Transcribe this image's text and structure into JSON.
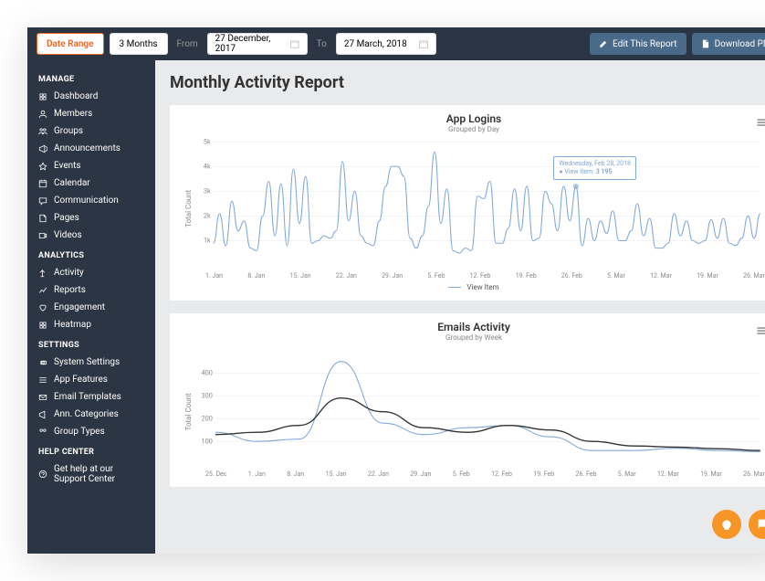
{
  "topbar": {
    "date_range_label": "Date Range",
    "period_label": "3 Months",
    "from_label": "From",
    "to_label": "To",
    "from_date": "27 December, 2017",
    "to_date": "27 March, 2018",
    "edit_report": "Edit This Report",
    "download_pdf": "Download PDF"
  },
  "sidebar": {
    "sections": [
      {
        "title": "MANAGE",
        "items": [
          "Dashboard",
          "Members",
          "Groups",
          "Announcements",
          "Events",
          "Calendar",
          "Communication",
          "Pages",
          "Videos"
        ]
      },
      {
        "title": "ANALYTICS",
        "items": [
          "Activity",
          "Reports",
          "Engagement",
          "Heatmap"
        ]
      },
      {
        "title": "SETTINGS",
        "items": [
          "System Settings",
          "App Features",
          "Email Templates",
          "Ann. Categories",
          "Group Types"
        ]
      },
      {
        "title": "HELP CENTER",
        "items": [
          "Get help at our Support Center"
        ]
      }
    ]
  },
  "page": {
    "title": "Monthly Activity Report"
  },
  "chart1": {
    "title": "App Logins",
    "subtitle": "Grouped by Day",
    "ylabel": "Total Count",
    "ylim": [
      0,
      5000
    ],
    "yticks": [
      1000,
      2000,
      3000,
      4000,
      5000
    ],
    "ytick_labels": [
      "1k",
      "2k",
      "3k",
      "4k",
      "5k"
    ],
    "xticks": [
      "1. Jan",
      "8. Jan",
      "15. Jan",
      "22. Jan",
      "29. Jan",
      "5. Feb",
      "12. Feb",
      "19. Feb",
      "26. Feb",
      "5. Mar",
      "12. Mar",
      "19. Mar",
      "26. Mar"
    ],
    "series_name": "View Item",
    "line_color": "#7fa8d9",
    "grid_color": "#e8e8e8",
    "tooltip": {
      "date": "Wednesday, Feb 28, 2018",
      "label": "View Item:",
      "value": "3 195"
    },
    "data": [
      900,
      2100,
      800,
      2600,
      1400,
      1800,
      700,
      600,
      2000,
      3400,
      1200,
      3300,
      800,
      3900,
      1700,
      3600,
      900,
      1000,
      1200,
      1100,
      1400,
      4200,
      1800,
      3000,
      1200,
      900,
      800,
      1800,
      3200,
      4000,
      4000,
      3600,
      1100,
      700,
      1200,
      2400,
      4600,
      1700,
      3100,
      600,
      500,
      700,
      600,
      2800,
      2700,
      3400,
      900,
      900,
      1500,
      3100,
      1400,
      3200,
      1000,
      1100,
      3000,
      2500,
      1400,
      3200,
      1800,
      3195,
      800,
      1900,
      1000,
      1800,
      1300,
      2200,
      1000,
      1000,
      1400,
      2500,
      1200,
      1900,
      700,
      700,
      900,
      2100,
      1200,
      1800,
      1000,
      900,
      1000,
      1850,
      1100,
      1900,
      900,
      800,
      1100,
      2000,
      1100,
      2100
    ]
  },
  "chart2": {
    "title": "Emails Activity",
    "subtitle": "Grouped by Week",
    "ylabel": "Total Count",
    "ylim": [
      0,
      500
    ],
    "yticks": [
      100,
      200,
      300,
      400
    ],
    "xticks": [
      "25. Dec",
      "1. Jan",
      "8. Jan",
      "15. Jan",
      "22. Jan",
      "29. Jan",
      "5. Feb",
      "12. Feb",
      "19. Feb",
      "26. Feb",
      "5. Mar",
      "12. Mar",
      "19. Mar",
      "26. Mar"
    ],
    "line1_color": "#7fa8d9",
    "line2_color": "#333333",
    "grid_color": "#e8e8e8",
    "data1": [
      140,
      100,
      110,
      450,
      180,
      130,
      160,
      170,
      120,
      60,
      60,
      70,
      60,
      55
    ],
    "data2": [
      130,
      140,
      170,
      290,
      230,
      160,
      140,
      170,
      150,
      100,
      80,
      75,
      68,
      60
    ]
  },
  "colors": {
    "sidebar_bg": "#2c3544",
    "main_bg": "#e9eaec",
    "accent": "#f26522",
    "fab": "#f79626",
    "topbar_btn": "#4a6a8a"
  }
}
